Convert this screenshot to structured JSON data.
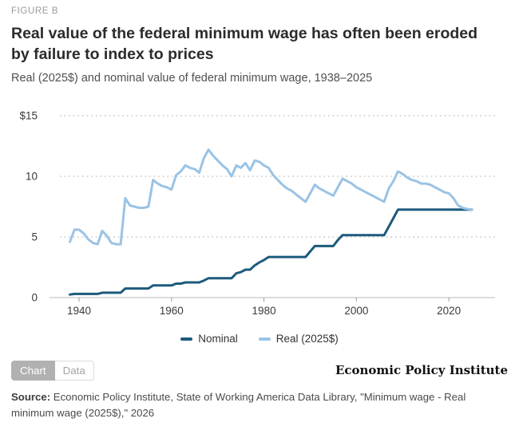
{
  "figure_label": "FIGURE B",
  "title": "Real value of the federal minimum wage has often been eroded by failure to index to prices",
  "subtitle": "Real (2025$) and nominal value of federal minimum wage, 1938–2025",
  "legend": {
    "nominal_label": "Nominal",
    "real_label": "Real (2025$)"
  },
  "toggle": {
    "chart_label": "Chart",
    "data_label": "Data"
  },
  "branding": "Economic Policy Institute",
  "source": {
    "label": "Source:",
    "text": " Economic Policy Institute, State of Working America Data Library, \"Minimum wage - Real minimum wage (2025$),\" 2026"
  },
  "colors": {
    "nominal": "#1d5a7c",
    "real": "#9ac3e5",
    "grid": "#cfcfcf",
    "zero_line": "#c6c6c6",
    "tick": "#9a9a9a",
    "axis_text": "#3a3a3a"
  },
  "chart_data": {
    "type": "line",
    "title": "Real value of the federal minimum wage has often been eroded by failure to index to prices",
    "subtitle": "Real (2025$) and nominal value of federal minimum wage, 1938–2025",
    "xlabel": "",
    "ylabel": "",
    "xlim": [
      1933.6,
      2030
    ],
    "ylim": [
      0,
      15
    ],
    "xticks": [
      1940,
      1960,
      1980,
      2000,
      2020
    ],
    "yticks": [
      0,
      5,
      10,
      15
    ],
    "ytick_labels": [
      "0",
      "5",
      "10",
      "$15"
    ],
    "grid": "dotted-horizontal",
    "legend_position": "bottom-center",
    "x": [
      1938,
      1939,
      1940,
      1941,
      1942,
      1943,
      1944,
      1945,
      1946,
      1947,
      1948,
      1949,
      1950,
      1951,
      1952,
      1953,
      1954,
      1955,
      1956,
      1957,
      1958,
      1959,
      1960,
      1961,
      1962,
      1963,
      1964,
      1965,
      1966,
      1967,
      1968,
      1969,
      1970,
      1971,
      1972,
      1973,
      1974,
      1975,
      1976,
      1977,
      1978,
      1979,
      1980,
      1981,
      1982,
      1983,
      1984,
      1985,
      1986,
      1987,
      1988,
      1989,
      1990,
      1991,
      1992,
      1993,
      1994,
      1995,
      1996,
      1997,
      1998,
      1999,
      2000,
      2001,
      2002,
      2003,
      2004,
      2005,
      2006,
      2007,
      2008,
      2009,
      2010,
      2011,
      2012,
      2013,
      2014,
      2015,
      2016,
      2017,
      2018,
      2019,
      2020,
      2021,
      2022,
      2023,
      2024,
      2025
    ],
    "series": [
      {
        "name": "Nominal",
        "color": "#1d5a7c",
        "values": [
          0.25,
          0.3,
          0.3,
          0.3,
          0.3,
          0.3,
          0.3,
          0.4,
          0.4,
          0.4,
          0.4,
          0.4,
          0.75,
          0.75,
          0.75,
          0.75,
          0.75,
          0.75,
          1.0,
          1.0,
          1.0,
          1.0,
          1.0,
          1.15,
          1.15,
          1.25,
          1.25,
          1.25,
          1.25,
          1.4,
          1.6,
          1.6,
          1.6,
          1.6,
          1.6,
          1.6,
          2.0,
          2.1,
          2.3,
          2.3,
          2.65,
          2.9,
          3.1,
          3.35,
          3.35,
          3.35,
          3.35,
          3.35,
          3.35,
          3.35,
          3.35,
          3.35,
          3.8,
          4.25,
          4.25,
          4.25,
          4.25,
          4.25,
          4.75,
          5.15,
          5.15,
          5.15,
          5.15,
          5.15,
          5.15,
          5.15,
          5.15,
          5.15,
          5.15,
          5.85,
          6.55,
          7.25,
          7.25,
          7.25,
          7.25,
          7.25,
          7.25,
          7.25,
          7.25,
          7.25,
          7.25,
          7.25,
          7.25,
          7.25,
          7.25,
          7.25,
          7.25,
          7.25
        ]
      },
      {
        "name": "Real (2025$)",
        "color": "#9ac3e5",
        "values": [
          4.6,
          5.6,
          5.6,
          5.3,
          4.8,
          4.5,
          4.4,
          5.5,
          5.1,
          4.5,
          4.4,
          4.4,
          8.2,
          7.6,
          7.5,
          7.4,
          7.4,
          7.5,
          9.7,
          9.4,
          9.2,
          9.1,
          8.9,
          10.1,
          10.4,
          10.9,
          10.7,
          10.6,
          10.3,
          11.5,
          12.2,
          11.7,
          11.3,
          10.9,
          10.6,
          10.0,
          10.9,
          10.7,
          11.1,
          10.5,
          11.3,
          11.2,
          10.9,
          10.7,
          10.1,
          9.7,
          9.3,
          9.0,
          8.8,
          8.5,
          8.2,
          7.9,
          8.6,
          9.3,
          9.0,
          8.8,
          8.6,
          8.4,
          9.1,
          9.8,
          9.6,
          9.4,
          9.1,
          8.9,
          8.7,
          8.5,
          8.3,
          8.1,
          7.9,
          9.0,
          9.6,
          10.4,
          10.2,
          9.9,
          9.7,
          9.6,
          9.4,
          9.4,
          9.3,
          9.1,
          8.9,
          8.7,
          8.6,
          8.2,
          7.6,
          7.4,
          7.3,
          7.25
        ]
      }
    ]
  }
}
